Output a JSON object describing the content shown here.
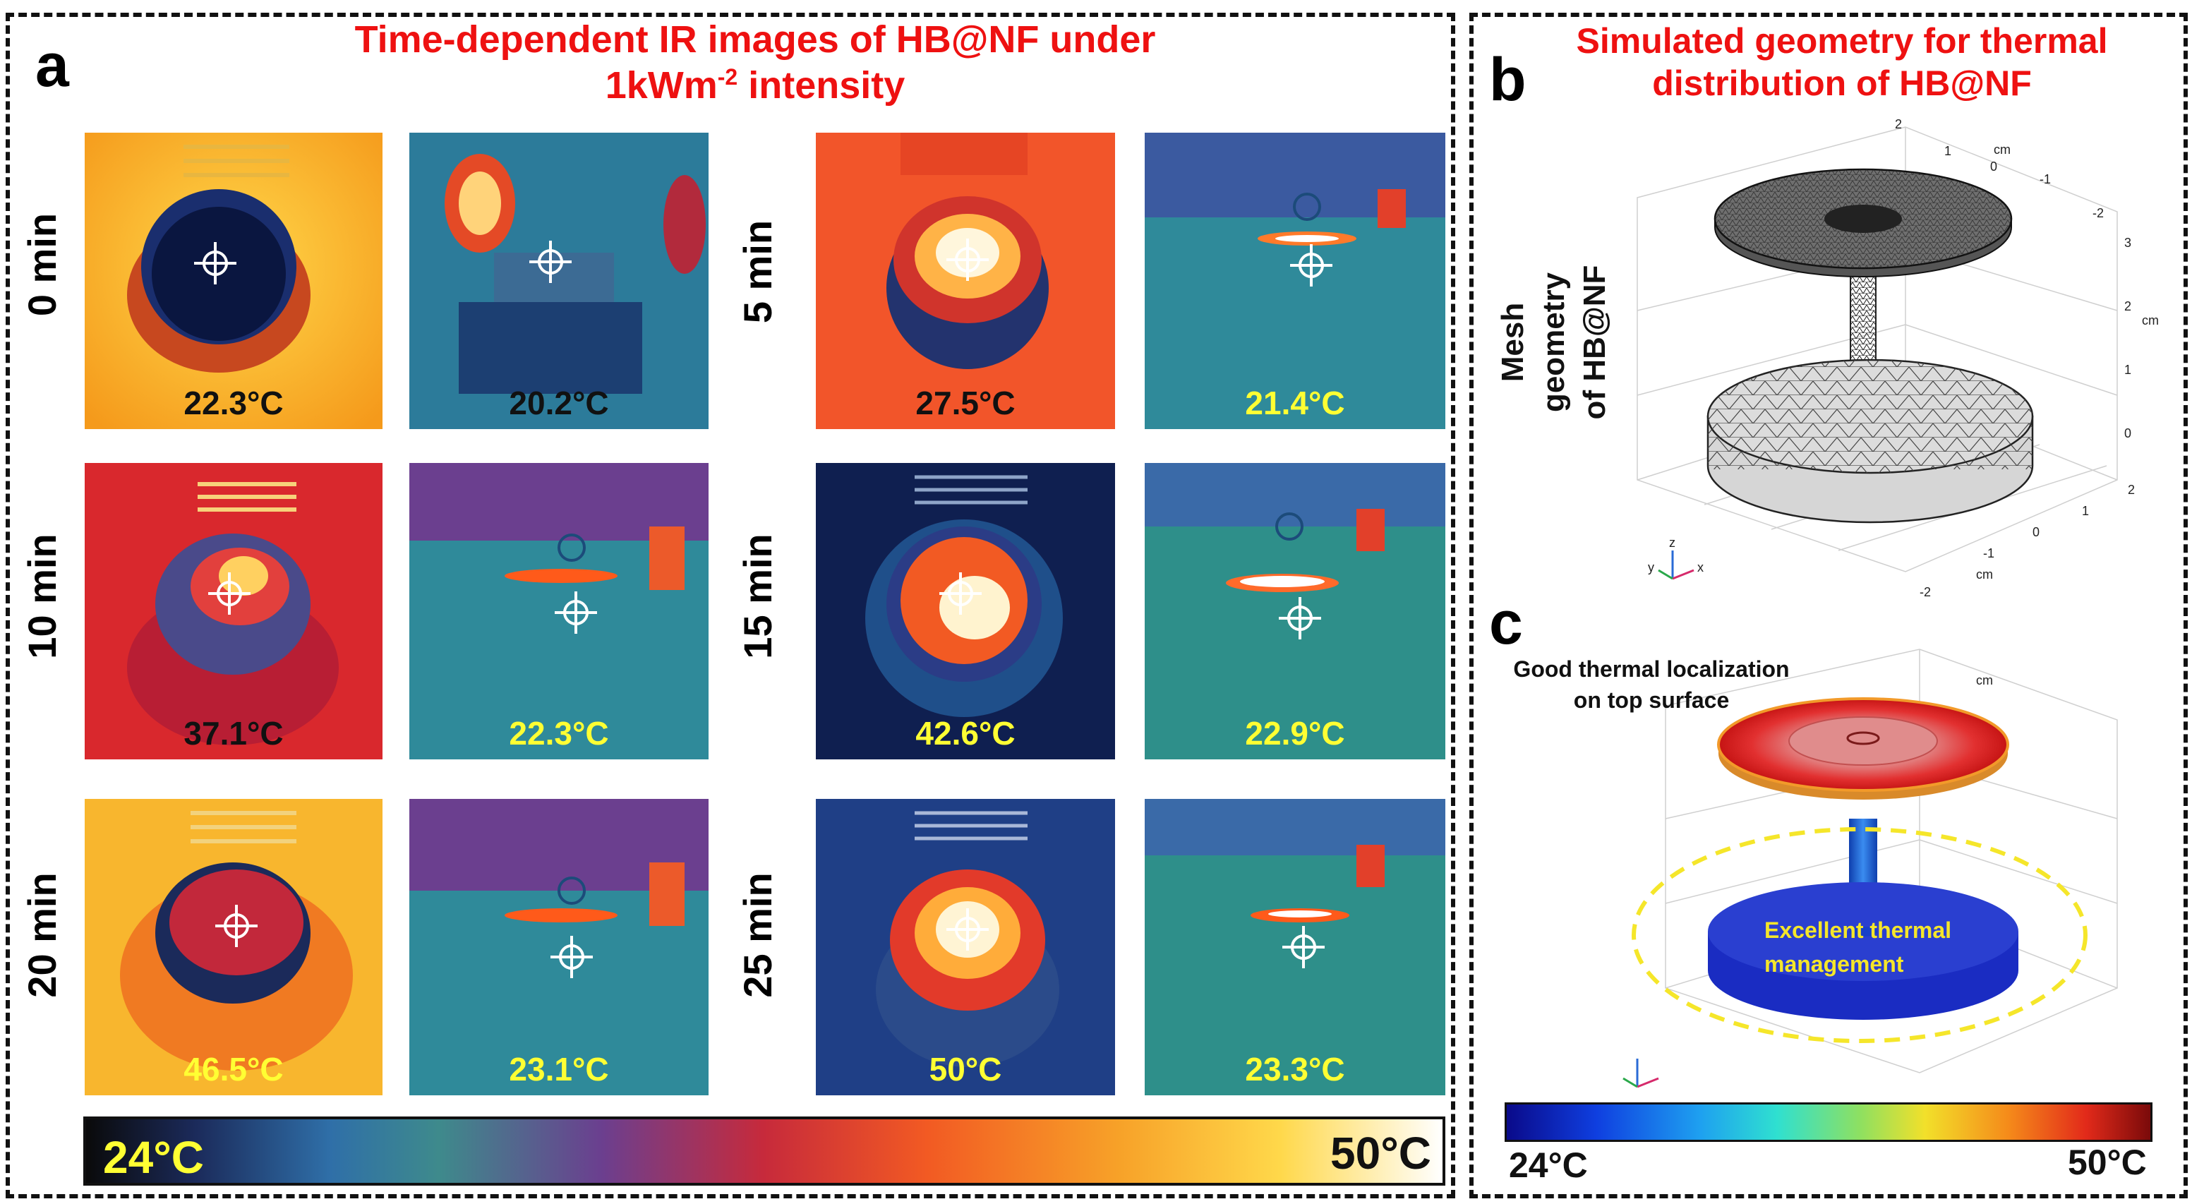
{
  "panel_a": {
    "letter": "a",
    "title_line1": "Time-dependent IR images of HB@NF  under",
    "title_line2_prefix": "1kWm",
    "title_line2_sup": "-2",
    "title_line2_suffix": " intensity",
    "times": [
      "0 min",
      "5 min",
      "10 min",
      "15 min",
      "20 min",
      "25 min"
    ],
    "temperatures": {
      "t0_top": "22.3°C",
      "t0_side": "20.2°C",
      "t5_top": "27.5°C",
      "t5_side": "21.4°C",
      "t10_top": "37.1°C",
      "t10_side": "22.3°C",
      "t15_top": "42.6°C",
      "t15_side": "22.9°C",
      "t20_top": "46.5°C",
      "t20_side": "23.1°C",
      "t25_top": "50°C",
      "t25_side": "23.3°C"
    },
    "colorbar": {
      "min_label": "24°C",
      "max_label": "50°C",
      "min": 24,
      "max": 50
    },
    "colors": {
      "black_text": "#111111",
      "yellow_text": "#ffff33"
    }
  },
  "panel_b": {
    "letter": "b",
    "title_line1": "Simulated geometry for thermal",
    "title_line2": "distribution of HB@NF",
    "side_label_line1": "Mesh geometry",
    "side_label_line2": "of HB@NF",
    "axis_unit": "cm",
    "z_ticks": [
      "0",
      "1",
      "2",
      "3"
    ],
    "x_ticks": [
      "-2",
      "-1",
      "0",
      "1",
      "2"
    ],
    "y_ticks": [
      "-2",
      "-1",
      "0",
      "1",
      "2"
    ],
    "triad": [
      "x",
      "y",
      "z"
    ]
  },
  "panel_c": {
    "letter": "c",
    "annotation_top_line1": "Good thermal localization",
    "annotation_top_line2": "on top surface",
    "annotation_bottom_line1": "Excellent thermal",
    "annotation_bottom_line2": "management",
    "axis_unit": "cm",
    "colorbar": {
      "min_label": "24°C",
      "max_label": "50°C",
      "min": 24,
      "max": 50
    }
  }
}
